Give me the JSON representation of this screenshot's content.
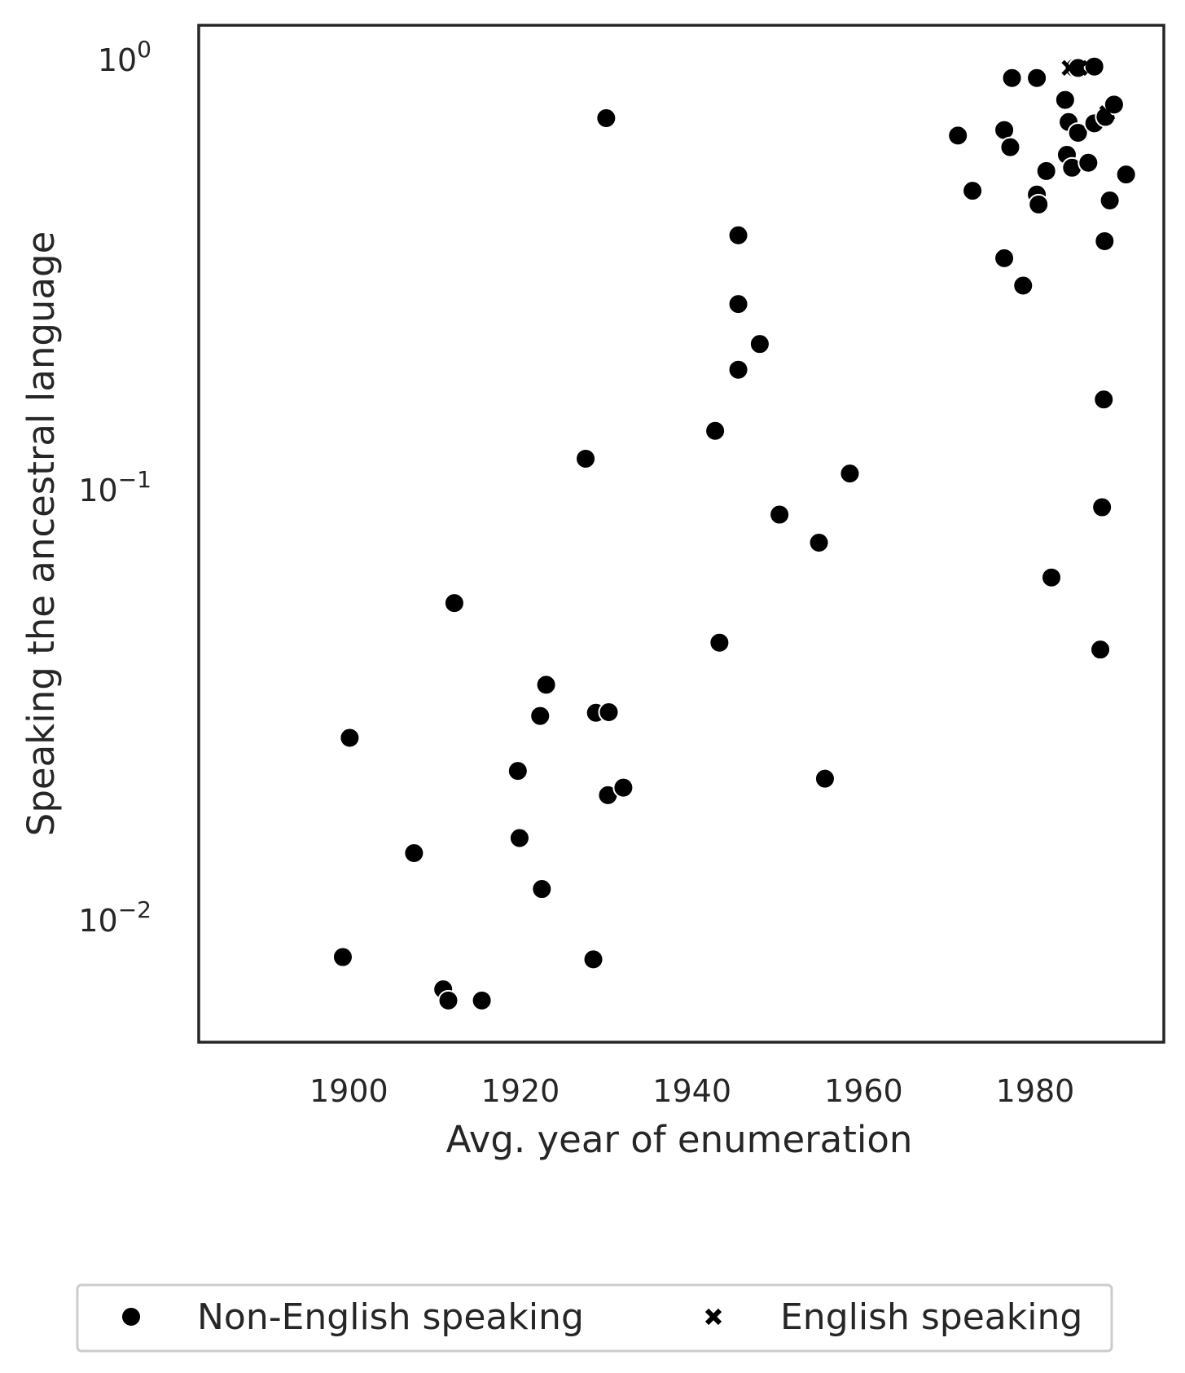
{
  "chart_data": {
    "type": "scatter",
    "xlabel": "Avg. year of enumeration",
    "ylabel": "Speaking the ancestral language",
    "xlim": [
      1882.5,
      1995
    ],
    "ylim": [
      0.0052,
      1.2
    ],
    "yscale": "log",
    "x_ticks": [
      1900,
      1920,
      1940,
      1960,
      1980
    ],
    "y_ticks": [
      {
        "value": 1,
        "base": "10",
        "exp": "0"
      },
      {
        "value": 0.1,
        "base": "10",
        "exp": "−1"
      },
      {
        "value": 0.01,
        "base": "10",
        "exp": "−2"
      }
    ],
    "grid": false,
    "legend_position": "bottom-center",
    "colors": {
      "marker": "#000000",
      "marker_edge": "#ffffff",
      "frame": "#262626",
      "legend_border": "#cccccc"
    },
    "series": [
      {
        "name": "Non-English speaking",
        "marker": "circle",
        "points": [
          [
            1899.3,
            0.0082
          ],
          [
            1900.1,
            0.0265
          ],
          [
            1907.6,
            0.0143
          ],
          [
            1911.0,
            0.0069
          ],
          [
            1911.6,
            0.0065
          ],
          [
            1912.3,
            0.0545
          ],
          [
            1915.5,
            0.0065
          ],
          [
            1919.7,
            0.0222
          ],
          [
            1919.9,
            0.0155
          ],
          [
            1922.3,
            0.0298
          ],
          [
            1922.5,
            0.0118
          ],
          [
            1923.0,
            0.0352
          ],
          [
            1927.6,
            0.118
          ],
          [
            1928.5,
            0.0081
          ],
          [
            1928.8,
            0.0303
          ],
          [
            1930.0,
            0.73
          ],
          [
            1930.2,
            0.0195
          ],
          [
            1930.3,
            0.0304
          ],
          [
            1932.0,
            0.0203
          ],
          [
            1942.7,
            0.137
          ],
          [
            1943.2,
            0.0441
          ],
          [
            1945.4,
            0.39
          ],
          [
            1945.4,
            0.27
          ],
          [
            1945.4,
            0.19
          ],
          [
            1947.9,
            0.218
          ],
          [
            1950.2,
            0.0875
          ],
          [
            1954.8,
            0.0753
          ],
          [
            1955.5,
            0.0213
          ],
          [
            1958.4,
            0.109
          ],
          [
            1971.0,
            0.665
          ],
          [
            1972.7,
            0.495
          ],
          [
            1976.4,
            0.685
          ],
          [
            1976.4,
            0.345
          ],
          [
            1977.1,
            0.625
          ],
          [
            1977.3,
            0.905
          ],
          [
            1978.6,
            0.298
          ],
          [
            1980.2,
            0.905
          ],
          [
            1980.2,
            0.485
          ],
          [
            1980.4,
            0.46
          ],
          [
            1981.3,
            0.55
          ],
          [
            1981.9,
            0.0625
          ],
          [
            1983.5,
            0.805
          ],
          [
            1983.7,
            0.6
          ],
          [
            1983.9,
            0.715
          ],
          [
            1984.3,
            0.56
          ],
          [
            1984.6,
            0.955
          ],
          [
            1985.0,
            0.955
          ],
          [
            1985.0,
            0.675
          ],
          [
            1986.2,
            0.575
          ],
          [
            1986.9,
            0.962
          ],
          [
            1986.9,
            0.71
          ],
          [
            1987.6,
            0.0425
          ],
          [
            1987.8,
            0.091
          ],
          [
            1988.0,
            0.162
          ],
          [
            1988.1,
            0.378
          ],
          [
            1988.2,
            0.735
          ],
          [
            1988.7,
            0.47
          ],
          [
            1989.2,
            0.785
          ],
          [
            1990.6,
            0.54
          ]
        ]
      },
      {
        "name": "English speaking",
        "marker": "x",
        "points": [
          [
            1984.0,
            0.955
          ],
          [
            1985.2,
            0.955
          ],
          [
            1988.4,
            0.75
          ]
        ]
      }
    ]
  }
}
